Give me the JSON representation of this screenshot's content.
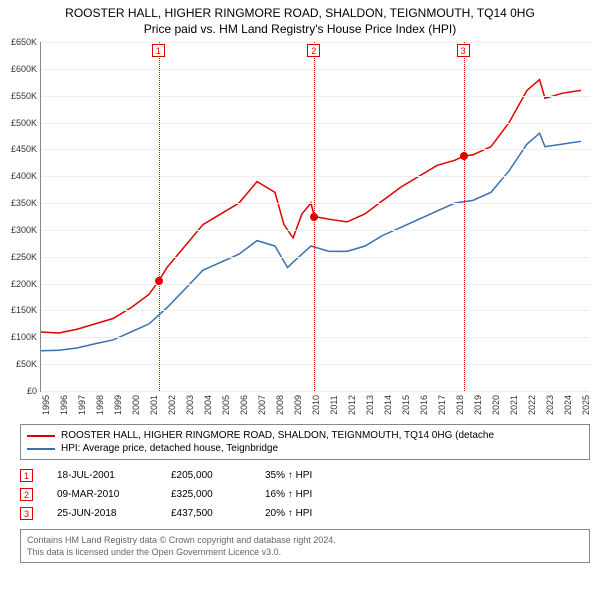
{
  "title": {
    "line1": "ROOSTER HALL, HIGHER RINGMORE ROAD, SHALDON, TEIGNMOUTH, TQ14 0HG",
    "line2": "Price paid vs. HM Land Registry's House Price Index (HPI)"
  },
  "chart": {
    "type": "line",
    "background_color": "#ffffff",
    "grid_color": "#eeeeee",
    "axis_color": "#888888",
    "ylim": [
      0,
      650000
    ],
    "ytick_step": 50000,
    "yticks": [
      "£0",
      "£50K",
      "£100K",
      "£150K",
      "£200K",
      "£250K",
      "£300K",
      "£350K",
      "£400K",
      "£450K",
      "£500K",
      "£550K",
      "£600K",
      "£650K"
    ],
    "xlim": [
      1995,
      2025.5
    ],
    "xticks": [
      "1995",
      "1996",
      "1997",
      "1998",
      "1999",
      "2000",
      "2001",
      "2002",
      "2003",
      "2004",
      "2005",
      "2006",
      "2007",
      "2008",
      "2009",
      "2010",
      "2011",
      "2012",
      "2013",
      "2014",
      "2015",
      "2016",
      "2017",
      "2018",
      "2019",
      "2020",
      "2021",
      "2022",
      "2023",
      "2024",
      "2025"
    ],
    "label_fontsize": 9,
    "line_width": 1.5,
    "series": [
      {
        "name": "property",
        "color": "#e00000",
        "values": [
          [
            1995,
            110000
          ],
          [
            1996,
            108000
          ],
          [
            1997,
            115000
          ],
          [
            1998,
            125000
          ],
          [
            1999,
            135000
          ],
          [
            2000,
            155000
          ],
          [
            2001,
            180000
          ],
          [
            2001.54,
            205000
          ],
          [
            2002,
            230000
          ],
          [
            2003,
            270000
          ],
          [
            2004,
            310000
          ],
          [
            2005,
            330000
          ],
          [
            2006,
            350000
          ],
          [
            2007,
            390000
          ],
          [
            2008,
            370000
          ],
          [
            2008.5,
            310000
          ],
          [
            2009,
            285000
          ],
          [
            2009.5,
            330000
          ],
          [
            2010,
            350000
          ],
          [
            2010.18,
            325000
          ],
          [
            2011,
            320000
          ],
          [
            2012,
            315000
          ],
          [
            2013,
            330000
          ],
          [
            2014,
            355000
          ],
          [
            2015,
            380000
          ],
          [
            2016,
            400000
          ],
          [
            2017,
            420000
          ],
          [
            2018,
            430000
          ],
          [
            2018.48,
            437500
          ],
          [
            2019,
            440000
          ],
          [
            2020,
            455000
          ],
          [
            2021,
            500000
          ],
          [
            2022,
            560000
          ],
          [
            2022.7,
            580000
          ],
          [
            2023,
            545000
          ],
          [
            2024,
            555000
          ],
          [
            2025,
            560000
          ]
        ]
      },
      {
        "name": "hpi",
        "color": "#3a6fb0",
        "values": [
          [
            1995,
            75000
          ],
          [
            1996,
            76000
          ],
          [
            1997,
            80000
          ],
          [
            1998,
            88000
          ],
          [
            1999,
            95000
          ],
          [
            2000,
            110000
          ],
          [
            2001,
            125000
          ],
          [
            2002,
            155000
          ],
          [
            2003,
            190000
          ],
          [
            2004,
            225000
          ],
          [
            2005,
            240000
          ],
          [
            2006,
            255000
          ],
          [
            2007,
            280000
          ],
          [
            2008,
            270000
          ],
          [
            2008.7,
            230000
          ],
          [
            2009,
            240000
          ],
          [
            2010,
            270000
          ],
          [
            2011,
            260000
          ],
          [
            2012,
            260000
          ],
          [
            2013,
            270000
          ],
          [
            2014,
            290000
          ],
          [
            2015,
            305000
          ],
          [
            2016,
            320000
          ],
          [
            2017,
            335000
          ],
          [
            2018,
            350000
          ],
          [
            2019,
            355000
          ],
          [
            2020,
            370000
          ],
          [
            2021,
            410000
          ],
          [
            2022,
            460000
          ],
          [
            2022.7,
            480000
          ],
          [
            2023,
            455000
          ],
          [
            2024,
            460000
          ],
          [
            2025,
            465000
          ]
        ]
      }
    ],
    "markers": [
      {
        "num": "1",
        "x": 2001.54,
        "y": 205000
      },
      {
        "num": "2",
        "x": 2010.18,
        "y": 325000
      },
      {
        "num": "3",
        "x": 2018.48,
        "y": 437500
      }
    ]
  },
  "legend": {
    "items": [
      {
        "color": "#e00000",
        "label": "ROOSTER HALL, HIGHER RINGMORE ROAD, SHALDON, TEIGNMOUTH, TQ14 0HG (detache"
      },
      {
        "color": "#3a6fb0",
        "label": "HPI: Average price, detached house, Teignbridge"
      }
    ]
  },
  "transactions": [
    {
      "num": "1",
      "date": "18-JUL-2001",
      "price": "£205,000",
      "diff": "35% ↑ HPI"
    },
    {
      "num": "2",
      "date": "09-MAR-2010",
      "price": "£325,000",
      "diff": "16% ↑ HPI"
    },
    {
      "num": "3",
      "date": "25-JUN-2018",
      "price": "£437,500",
      "diff": "20% ↑ HPI"
    }
  ],
  "footer": {
    "line1": "Contains HM Land Registry data © Crown copyright and database right 2024.",
    "line2": "This data is licensed under the Open Government Licence v3.0."
  }
}
